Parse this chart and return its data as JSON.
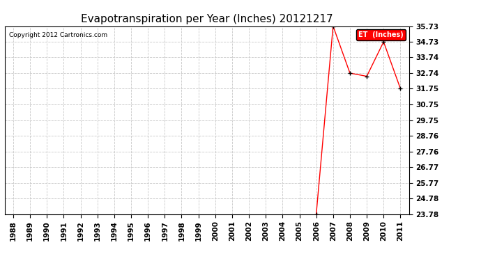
{
  "title": "Evapotranspiration per Year (Inches) 20121217",
  "copyright": "Copyright 2012 Cartronics.com",
  "legend_label": "ET  (Inches)",
  "legend_bg": "#ff0000",
  "legend_fg": "#ffffff",
  "x_years": [
    1988,
    1989,
    1990,
    1991,
    1992,
    1993,
    1994,
    1995,
    1996,
    1997,
    1998,
    1999,
    2000,
    2001,
    2002,
    2003,
    2004,
    2005,
    2006,
    2007,
    2008,
    2009,
    2010,
    2011
  ],
  "y_values": [
    null,
    null,
    null,
    null,
    null,
    null,
    null,
    null,
    null,
    null,
    null,
    null,
    null,
    null,
    null,
    null,
    null,
    null,
    23.78,
    35.73,
    32.74,
    32.54,
    34.73,
    31.75
  ],
  "ylim_min": 23.78,
  "ylim_max": 35.73,
  "yticks": [
    23.78,
    24.78,
    25.77,
    26.77,
    27.76,
    28.76,
    29.75,
    30.75,
    31.75,
    32.74,
    33.74,
    34.73,
    35.73
  ],
  "line_color": "#ff0000",
  "marker_color": "#000000",
  "grid_color": "#c8c8c8",
  "grid_style": "--",
  "bg_color": "#ffffff",
  "plot_bg_color": "#ffffff",
  "title_fontsize": 11,
  "tick_fontsize": 7.5,
  "copyright_fontsize": 6.5
}
